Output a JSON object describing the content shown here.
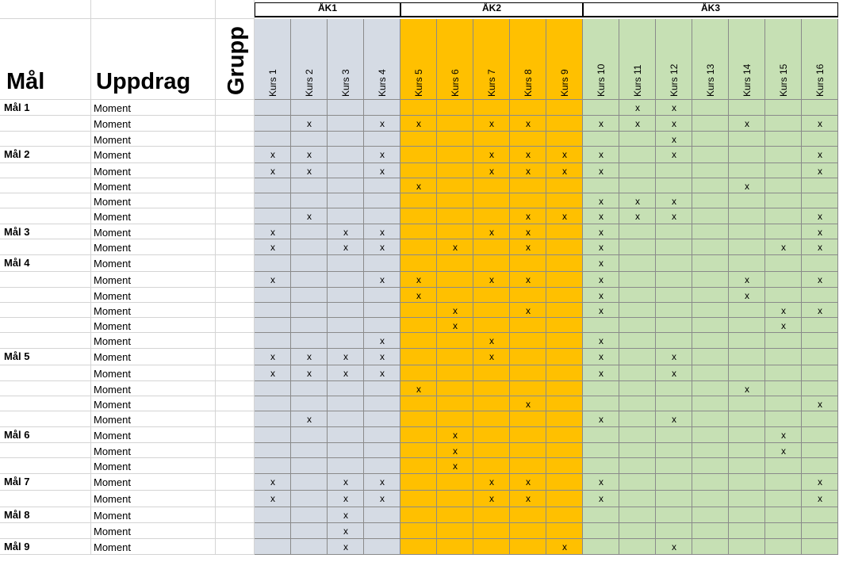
{
  "headers": {
    "goal": "Mål",
    "task": "Uppdrag",
    "group": "Grupp"
  },
  "year_groups": [
    {
      "label": "ÅK1",
      "courses": [
        "Kurs 1",
        "Kurs 2",
        "Kurs 3",
        "Kurs 4"
      ],
      "color": "#d5dbe4"
    },
    {
      "label": "ÅK2",
      "courses": [
        "Kurs 5",
        "Kurs 6",
        "Kurs 7",
        "Kurs 8",
        "Kurs 9"
      ],
      "color": "#ffc000"
    },
    {
      "label": "ÅK3",
      "courses": [
        "Kurs 10",
        "Kurs 11",
        "Kurs 12",
        "Kurs 13",
        "Kurs 14",
        "Kurs 15",
        "Kurs 16"
      ],
      "color": "#c6e0b4"
    }
  ],
  "mark_symbol": "x",
  "rows": [
    {
      "goal": "Mål 1",
      "task": "Moment",
      "marks": [
        11,
        12
      ]
    },
    {
      "goal": "",
      "task": "Moment",
      "marks": [
        2,
        4,
        5,
        7,
        8,
        10,
        11,
        12,
        14,
        16
      ]
    },
    {
      "goal": "",
      "task": "Moment",
      "marks": [
        12
      ]
    },
    {
      "goal": "Mål 2",
      "task": "Moment",
      "marks": [
        1,
        2,
        4,
        7,
        8,
        9,
        10,
        12,
        16
      ]
    },
    {
      "goal": "",
      "task": "Moment",
      "marks": [
        1,
        2,
        4,
        7,
        8,
        9,
        10,
        16
      ]
    },
    {
      "goal": "",
      "task": "Moment",
      "marks": [
        5,
        14
      ]
    },
    {
      "goal": "",
      "task": "Moment",
      "marks": [
        10,
        11,
        12
      ]
    },
    {
      "goal": "",
      "task": "Moment",
      "marks": [
        2,
        8,
        9,
        10,
        11,
        12,
        16
      ]
    },
    {
      "goal": "Mål 3",
      "task": "Moment",
      "marks": [
        1,
        3,
        4,
        7,
        8,
        10,
        16
      ]
    },
    {
      "goal": "",
      "task": "Moment",
      "marks": [
        1,
        3,
        4,
        6,
        8,
        10,
        15,
        16
      ]
    },
    {
      "goal": "Mål 4",
      "task": "Moment",
      "marks": [
        10
      ]
    },
    {
      "goal": "",
      "task": "Moment",
      "marks": [
        1,
        4,
        5,
        7,
        8,
        10,
        14,
        16
      ]
    },
    {
      "goal": "",
      "task": "Moment",
      "marks": [
        5,
        10,
        14
      ]
    },
    {
      "goal": "",
      "task": "Moment",
      "marks": [
        6,
        8,
        10,
        15,
        16
      ]
    },
    {
      "goal": "",
      "task": "Moment",
      "marks": [
        6,
        15
      ]
    },
    {
      "goal": "",
      "task": "Moment",
      "marks": [
        4,
        7,
        10
      ]
    },
    {
      "goal": "Mål 5",
      "task": "Moment",
      "marks": [
        1,
        2,
        3,
        4,
        7,
        10,
        12
      ]
    },
    {
      "goal": "",
      "task": "Moment",
      "marks": [
        1,
        2,
        3,
        4,
        10,
        12
      ]
    },
    {
      "goal": "",
      "task": "Moment",
      "marks": [
        5,
        14
      ]
    },
    {
      "goal": "",
      "task": "Moment",
      "marks": [
        8,
        16
      ]
    },
    {
      "goal": "",
      "task": "Moment",
      "marks": [
        2,
        10,
        12
      ]
    },
    {
      "goal": "Mål 6",
      "task": "Moment",
      "marks": [
        6,
        15
      ]
    },
    {
      "goal": "",
      "task": "Moment",
      "marks": [
        6,
        15
      ]
    },
    {
      "goal": "",
      "task": "Moment",
      "marks": [
        6
      ]
    },
    {
      "goal": "Mål 7",
      "task": "Moment",
      "marks": [
        1,
        3,
        4,
        7,
        8,
        10,
        16
      ]
    },
    {
      "goal": "",
      "task": "Moment",
      "marks": [
        1,
        3,
        4,
        7,
        8,
        10,
        16
      ]
    },
    {
      "goal": "Mål 8",
      "task": "Moment",
      "marks": [
        3
      ]
    },
    {
      "goal": "",
      "task": "Moment",
      "marks": [
        3
      ]
    },
    {
      "goal": "Mål 9",
      "task": "Moment",
      "marks": [
        3,
        9,
        12
      ]
    }
  ]
}
